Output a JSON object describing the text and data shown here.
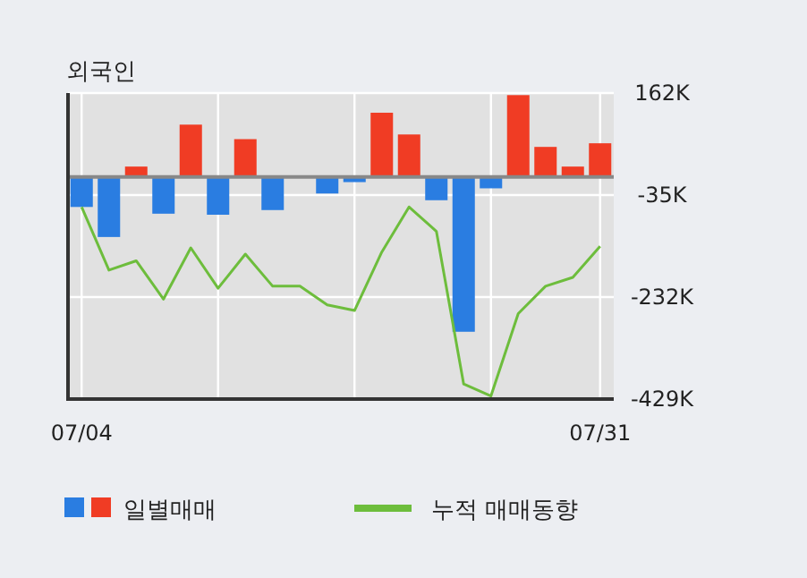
{
  "chart_data": {
    "type": "bar",
    "title": "외국인",
    "categories": [
      "07/04",
      null,
      null,
      null,
      null,
      null,
      null,
      null,
      null,
      null,
      null,
      null,
      null,
      null,
      null,
      null,
      null,
      null,
      null,
      "07/31"
    ],
    "series": [
      {
        "name": "일별매매",
        "colors": [
          "#2a7de1",
          "#2a7de1",
          "#f03c24",
          "#2a7de1",
          "#f03c24",
          "#2a7de1",
          "#f03c24",
          "#2a7de1",
          "#f03c24",
          "#2a7de1",
          "#2a7de1",
          "#f03c24",
          "#f03c24",
          "#2a7de1",
          "#2a7de1",
          "#2a7de1",
          "#f03c24",
          "#f03c24",
          "#f03c24",
          "#f03c24"
        ],
        "values": [
          -58000,
          -116000,
          20000,
          -71000,
          101000,
          -73000,
          73000,
          -64000,
          0,
          -32000,
          -10000,
          124000,
          82000,
          -45000,
          -299000,
          -22000,
          158000,
          58000,
          20000,
          65000
        ]
      },
      {
        "name": "누적 매매동향",
        "type": "line",
        "color": "#6dbd3c",
        "values": [
          -58000,
          -180000,
          -162000,
          -236000,
          -137000,
          -215000,
          -149000,
          -211000,
          -211000,
          -247000,
          -258000,
          -145000,
          -58000,
          -105000,
          -400000,
          -423000,
          -264000,
          -211000,
          -194000,
          -134000
        ]
      }
    ],
    "ylim": [
      -429000,
      162000
    ],
    "yticks": [
      {
        "value": 162000,
        "label": "162K"
      },
      {
        "value": -35000,
        "label": "-35K"
      },
      {
        "value": -232000,
        "label": "-232K"
      },
      {
        "value": -429000,
        "label": "-429K"
      }
    ],
    "grid": true,
    "legend": "bottom"
  }
}
